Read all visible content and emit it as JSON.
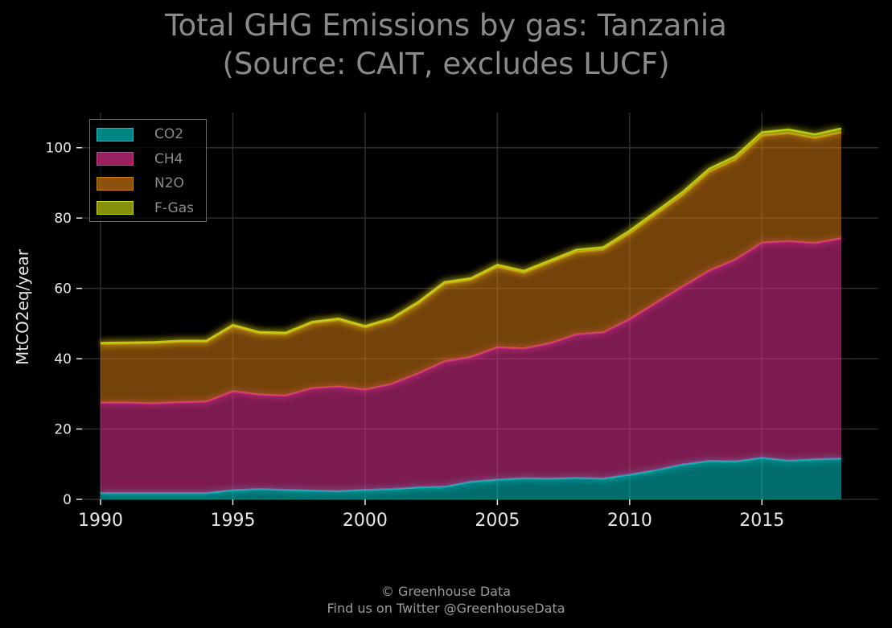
{
  "title_line1": "Total GHG Emissions by gas: Tanzania",
  "title_line2": "(Source: CAIT, excludes LUCF)",
  "footer_line1": "© Greenhouse Data",
  "footer_line2": "Find us on Twitter @GreenhouseData",
  "colors": {
    "background": "#000000",
    "grid": "#2e2e2e",
    "tick_text": "#e6e6e6",
    "CO2": "#00c7c7",
    "CH4": "#e2328f",
    "N2O": "#d27a12",
    "F-Gas": "#c8d810"
  },
  "chart_data": {
    "type": "area",
    "stacked": true,
    "title": "Total GHG Emissions by gas: Tanzania\n(Source: CAIT, excludes LUCF)",
    "xlabel": "",
    "ylabel": "MtCO2eq/year",
    "xlim": [
      1989.3,
      2019.4
    ],
    "ylim": [
      0,
      110
    ],
    "xticks": [
      1990,
      1995,
      2000,
      2005,
      2010,
      2015
    ],
    "yticks": [
      0,
      20,
      40,
      60,
      80,
      100
    ],
    "grid": true,
    "legend_position": "top-left",
    "x": [
      1990,
      1991,
      1992,
      1993,
      1994,
      1995,
      1996,
      1997,
      1998,
      1999,
      2000,
      2001,
      2002,
      2003,
      2004,
      2005,
      2006,
      2007,
      2008,
      2009,
      2010,
      2011,
      2012,
      2013,
      2014,
      2015,
      2016,
      2017,
      2018
    ],
    "series": [
      {
        "name": "CO2",
        "values": [
          1.8,
          1.8,
          1.8,
          1.8,
          1.8,
          2.6,
          2.9,
          2.7,
          2.5,
          2.3,
          2.7,
          2.9,
          3.4,
          3.6,
          5.0,
          5.6,
          6.0,
          5.9,
          6.1,
          5.9,
          7.0,
          8.3,
          9.9,
          10.9,
          10.8,
          11.8,
          11.0,
          11.4,
          11.6
        ]
      },
      {
        "name": "CH4",
        "values": [
          25.7,
          25.7,
          25.5,
          25.8,
          26.0,
          28.1,
          26.9,
          26.8,
          29.1,
          29.8,
          28.5,
          29.9,
          32.4,
          35.6,
          35.5,
          37.6,
          36.9,
          38.5,
          40.8,
          41.6,
          44.2,
          47.6,
          50.6,
          54.1,
          57.4,
          61.2,
          62.4,
          61.5,
          62.6
        ]
      },
      {
        "name": "N2O",
        "values": [
          16.7,
          16.8,
          17.1,
          17.2,
          17.0,
          18.5,
          17.4,
          17.5,
          18.5,
          18.9,
          17.7,
          18.3,
          19.8,
          22.1,
          21.9,
          22.9,
          21.5,
          23.0,
          23.4,
          23.5,
          24.4,
          25.2,
          26.0,
          28.1,
          28.4,
          30.4,
          30.7,
          29.8,
          30.1
        ]
      },
      {
        "name": "F-Gas",
        "values": [
          0.3,
          0.3,
          0.3,
          0.3,
          0.3,
          0.4,
          0.4,
          0.4,
          0.4,
          0.4,
          0.4,
          0.4,
          0.5,
          0.5,
          0.5,
          0.6,
          0.6,
          0.6,
          0.7,
          0.7,
          0.8,
          0.8,
          0.9,
          0.9,
          1.0,
          1.0,
          1.1,
          1.1,
          1.2
        ]
      }
    ]
  }
}
